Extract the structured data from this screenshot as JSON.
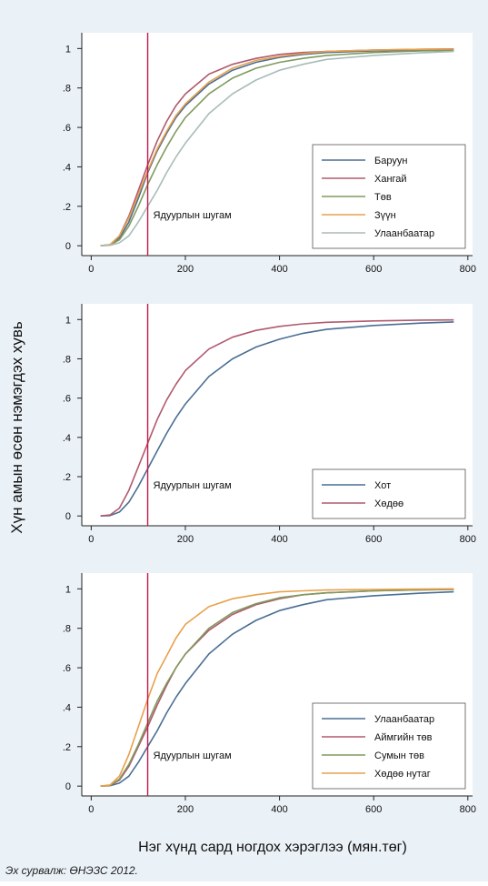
{
  "figure": {
    "ylabel": "Хүн амын өсөн нэмэгдэх хувь",
    "xlabel": "Нэг хүнд сард ногдох хэрэглээ (мян.төг)",
    "source": "Эх сурвалж: ӨНЭЗС 2012.",
    "poverty_line_color": "#c8174b"
  },
  "chart_data": [
    {
      "type": "line",
      "annotation": "Ядуурлын шугам",
      "poverty_line_x": 120,
      "xlim": [
        -20,
        810
      ],
      "ylim": [
        -0.05,
        1.08
      ],
      "xticks": [
        0,
        200,
        400,
        600,
        800
      ],
      "yticks": [
        0,
        0.2,
        0.4,
        0.6,
        0.8,
        1
      ],
      "ytick_labels": [
        "0",
        ".2",
        ".4",
        ".6",
        ".8",
        "1"
      ],
      "legend_position": "bottom-right",
      "x": [
        20,
        40,
        60,
        80,
        100,
        120,
        140,
        160,
        180,
        200,
        250,
        300,
        350,
        400,
        450,
        500,
        600,
        700,
        770
      ],
      "series": [
        {
          "name": "Баруун",
          "color": "#4a6e93",
          "values": [
            0,
            0.005,
            0.04,
            0.12,
            0.24,
            0.37,
            0.48,
            0.57,
            0.65,
            0.71,
            0.82,
            0.89,
            0.93,
            0.955,
            0.97,
            0.98,
            0.988,
            0.993,
            0.995
          ]
        },
        {
          "name": "Хангай",
          "color": "#b05a6e",
          "values": [
            0,
            0.005,
            0.05,
            0.15,
            0.28,
            0.41,
            0.53,
            0.63,
            0.71,
            0.77,
            0.87,
            0.92,
            0.95,
            0.97,
            0.98,
            0.985,
            0.992,
            0.996,
            0.998
          ]
        },
        {
          "name": "Төв",
          "color": "#7f9a5e",
          "values": [
            0,
            0.004,
            0.03,
            0.1,
            0.2,
            0.31,
            0.41,
            0.5,
            0.58,
            0.65,
            0.77,
            0.85,
            0.9,
            0.93,
            0.95,
            0.965,
            0.98,
            0.988,
            0.99
          ]
        },
        {
          "name": "Зүүн",
          "color": "#e8a04c",
          "values": [
            0,
            0.006,
            0.05,
            0.14,
            0.26,
            0.38,
            0.49,
            0.58,
            0.66,
            0.72,
            0.83,
            0.9,
            0.94,
            0.96,
            0.975,
            0.985,
            0.992,
            0.996,
            0.997
          ]
        },
        {
          "name": "Улаанбаатар",
          "color": "#a8bcb9",
          "values": [
            0,
            0.002,
            0.015,
            0.05,
            0.12,
            0.2,
            0.28,
            0.37,
            0.45,
            0.52,
            0.67,
            0.77,
            0.84,
            0.89,
            0.92,
            0.945,
            0.965,
            0.978,
            0.985
          ]
        }
      ]
    },
    {
      "type": "line",
      "annotation": "Ядуурлын шугам",
      "poverty_line_x": 120,
      "xlim": [
        -20,
        810
      ],
      "ylim": [
        -0.05,
        1.08
      ],
      "xticks": [
        0,
        200,
        400,
        600,
        800
      ],
      "yticks": [
        0,
        0.2,
        0.4,
        0.6,
        0.8,
        1
      ],
      "ytick_labels": [
        "0",
        ".2",
        ".4",
        ".6",
        ".8",
        "1"
      ],
      "legend_position": "bottom-right",
      "x": [
        20,
        40,
        60,
        80,
        100,
        120,
        140,
        160,
        180,
        200,
        250,
        300,
        350,
        400,
        450,
        500,
        600,
        700,
        770
      ],
      "series": [
        {
          "name": "Хот",
          "color": "#4a6e93",
          "values": [
            0,
            0.002,
            0.02,
            0.07,
            0.15,
            0.24,
            0.33,
            0.42,
            0.5,
            0.57,
            0.71,
            0.8,
            0.86,
            0.9,
            0.93,
            0.95,
            0.97,
            0.982,
            0.988
          ]
        },
        {
          "name": "Хөдөө",
          "color": "#b05a6e",
          "values": [
            0,
            0.005,
            0.04,
            0.13,
            0.25,
            0.37,
            0.49,
            0.59,
            0.67,
            0.74,
            0.85,
            0.91,
            0.945,
            0.965,
            0.978,
            0.986,
            0.993,
            0.997,
            0.998
          ]
        }
      ]
    },
    {
      "type": "line",
      "annotation": "Ядуурлын шугам",
      "poverty_line_x": 120,
      "xlim": [
        -20,
        810
      ],
      "ylim": [
        -0.05,
        1.08
      ],
      "xticks": [
        0,
        200,
        400,
        600,
        800
      ],
      "yticks": [
        0,
        0.2,
        0.4,
        0.6,
        0.8,
        1
      ],
      "ytick_labels": [
        "0",
        ".2",
        ".4",
        ".6",
        ".8",
        "1"
      ],
      "legend_position": "bottom-right",
      "x": [
        20,
        40,
        60,
        80,
        100,
        120,
        140,
        160,
        180,
        200,
        250,
        300,
        350,
        400,
        450,
        500,
        600,
        700,
        770
      ],
      "series": [
        {
          "name": "Улаанбаатар",
          "color": "#4a6e93",
          "values": [
            0,
            0.002,
            0.015,
            0.05,
            0.12,
            0.2,
            0.28,
            0.37,
            0.45,
            0.52,
            0.67,
            0.77,
            0.84,
            0.89,
            0.92,
            0.945,
            0.965,
            0.978,
            0.985
          ]
        },
        {
          "name": "Аймгийн төв",
          "color": "#b05a6e",
          "values": [
            0,
            0.004,
            0.03,
            0.1,
            0.2,
            0.3,
            0.41,
            0.51,
            0.6,
            0.67,
            0.79,
            0.87,
            0.92,
            0.95,
            0.97,
            0.98,
            0.99,
            0.995,
            0.997
          ]
        },
        {
          "name": "Сумын төв",
          "color": "#7f9a5e",
          "values": [
            0,
            0.004,
            0.035,
            0.11,
            0.21,
            0.32,
            0.43,
            0.52,
            0.6,
            0.67,
            0.8,
            0.88,
            0.925,
            0.955,
            0.97,
            0.98,
            0.99,
            0.995,
            0.997
          ]
        },
        {
          "name": "Хөдөө нутаг",
          "color": "#e8a04c",
          "values": [
            0,
            0.006,
            0.05,
            0.16,
            0.3,
            0.44,
            0.57,
            0.66,
            0.75,
            0.82,
            0.91,
            0.95,
            0.97,
            0.985,
            0.99,
            0.994,
            0.997,
            0.999,
            1
          ]
        }
      ]
    }
  ]
}
